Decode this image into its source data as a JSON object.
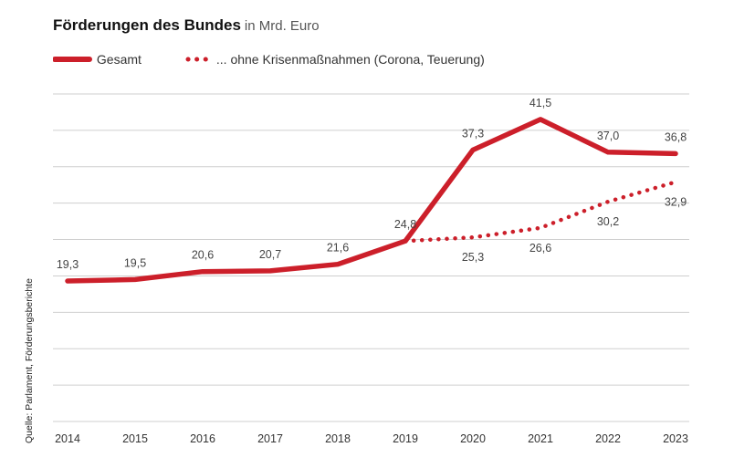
{
  "chart_data": {
    "type": "line",
    "title": "Förderungen des Bundes",
    "unit": "in Mrd. Euro",
    "categories": [
      "2014",
      "2015",
      "2016",
      "2017",
      "2018",
      "2019",
      "2020",
      "2021",
      "2022",
      "2023"
    ],
    "series": [
      {
        "name": "Gesamt",
        "style": "solid",
        "values": [
          19.3,
          19.5,
          20.6,
          20.7,
          21.6,
          24.8,
          37.3,
          41.5,
          37.0,
          36.8
        ],
        "labels": [
          "19,3",
          "19,5",
          "20,6",
          "20,7",
          "21,6",
          "24,8",
          "37,3",
          "41,5",
          "37,0",
          "36,8"
        ]
      },
      {
        "name": "... ohne Krisenmaßnahmen (Corona, Teuerung)",
        "style": "dotted",
        "x": [
          "2019",
          "2020",
          "2021",
          "2022",
          "2023"
        ],
        "values": [
          24.8,
          25.3,
          26.6,
          30.2,
          32.9
        ],
        "labels": [
          "25,3",
          "26,6",
          "30,2",
          "32,9"
        ]
      }
    ],
    "ylim": [
      0,
      45
    ],
    "grid": true,
    "legend": "top-left",
    "source": "Quelle: Parlament, Förderungsberichte"
  },
  "colors": {
    "line": "#cc1f2a",
    "grid": "#cfcfcf",
    "text": "#333333"
  }
}
